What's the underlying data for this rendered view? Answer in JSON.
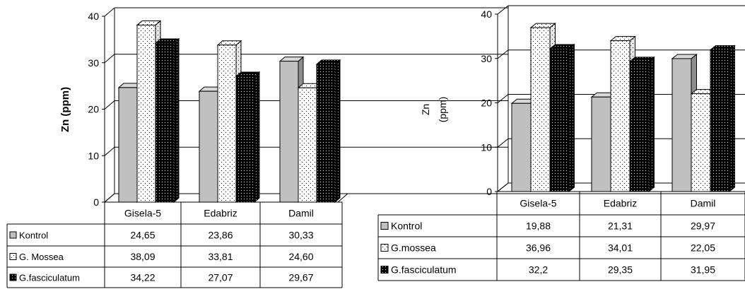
{
  "chart_data": [
    {
      "type": "bar",
      "categories": [
        "Gisela-5",
        "Edabriz",
        "Damil"
      ],
      "ylabel": "Zn (ppm)",
      "ylim": [
        0,
        40
      ],
      "yticks": [
        "0",
        "10",
        "20",
        "30",
        "40"
      ],
      "series": [
        {
          "name": "Kontrol",
          "values": [
            24.65,
            23.86,
            30.33
          ],
          "labels": [
            "24,65",
            "23,86",
            "30,33"
          ],
          "pattern": "gray"
        },
        {
          "name": "G. Mossea",
          "values": [
            38.09,
            33.81,
            24.6
          ],
          "labels": [
            "38,09",
            "33,81",
            "24,60"
          ],
          "pattern": "dots-light"
        },
        {
          "name": "G.fasciculatum",
          "values": [
            34.22,
            27.07,
            29.67
          ],
          "labels": [
            "34,22",
            "27,07",
            "29,67"
          ],
          "pattern": "dots-dark"
        }
      ]
    },
    {
      "type": "bar",
      "categories": [
        "Gisela-5",
        "Edabriz",
        "Damil"
      ],
      "ylabel": "Zn\n(ppm)",
      "ylim": [
        0,
        40
      ],
      "yticks": [
        "0",
        "10",
        "20",
        "30",
        "40"
      ],
      "series": [
        {
          "name": "Kontrol",
          "values": [
            19.88,
            21.31,
            29.97
          ],
          "labels": [
            "19,88",
            "21,31",
            "29,97"
          ],
          "pattern": "gray"
        },
        {
          "name": "G.mossea",
          "values": [
            36.96,
            34.01,
            22.05
          ],
          "labels": [
            "36,96",
            "34,01",
            "22,05"
          ],
          "pattern": "dots-light"
        },
        {
          "name": "G.fasciculatum",
          "values": [
            32.2,
            29.35,
            31.95
          ],
          "labels": [
            "32,2",
            "29,35",
            "31,95"
          ],
          "pattern": "dots-dark"
        }
      ]
    }
  ]
}
